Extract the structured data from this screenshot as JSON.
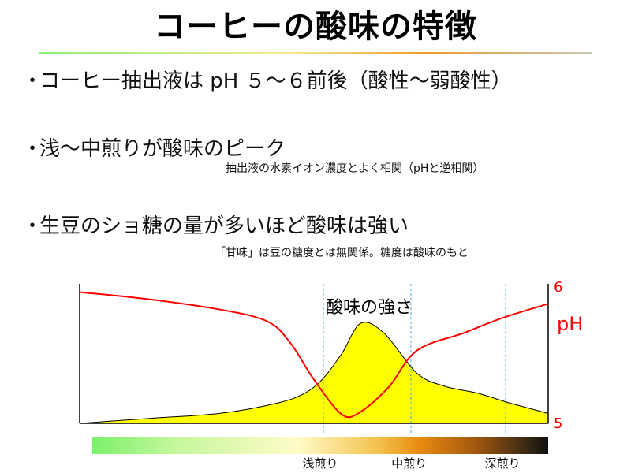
{
  "slide": {
    "title": "コーヒーの酸味の特徴",
    "bullet_marker": "・",
    "bullets": [
      "コーヒー抽出液は pH ５〜６前後（酸性〜弱酸性）",
      "浅〜中煎りが酸味のピーク",
      "生豆のショ糖の量が多いほど酸味は強い"
    ],
    "notes": [
      "抽出液の水素イオン濃度とよく相関（pHと逆相関）",
      "「甘味」は豆の糖度とは無関係。糖度は酸味のもと"
    ]
  },
  "chart_data": {
    "type": "line",
    "annotation": "酸味の強さ",
    "right_axis": {
      "label": "pH",
      "ticks": [
        "6",
        "5"
      ],
      "range": [
        5,
        6
      ],
      "color": "#ff0000"
    },
    "series": [
      {
        "name": "",
        "kind": "area",
        "color": "#ffff00",
        "stroke": "#000000",
        "x": [
          0,
          0.15,
          0.3,
          0.42,
          0.48,
          0.52,
          0.56,
          0.6,
          0.65,
          0.72,
          0.78,
          0.85,
          0.92,
          1
        ],
        "y": [
          0,
          0.05,
          0.1,
          0.2,
          0.3,
          0.45,
          0.7,
          1.0,
          0.9,
          0.5,
          0.37,
          0.3,
          0.2,
          0.1
        ]
      },
      {
        "name": "pH",
        "kind": "line",
        "color": "#ff0000",
        "x": [
          0,
          0.15,
          0.3,
          0.4,
          0.45,
          0.5,
          0.56,
          0.6,
          0.66,
          0.72,
          0.82,
          0.9,
          1
        ],
        "y": [
          5.9,
          5.85,
          5.78,
          5.7,
          5.55,
          5.3,
          5.06,
          5.08,
          5.25,
          5.5,
          5.62,
          5.72,
          5.82
        ]
      }
    ],
    "scale_labels": [
      "浅煎り",
      "中煎り",
      "深煎り"
    ],
    "scale_positions": [
      0.5,
      0.695,
      0.9
    ]
  }
}
